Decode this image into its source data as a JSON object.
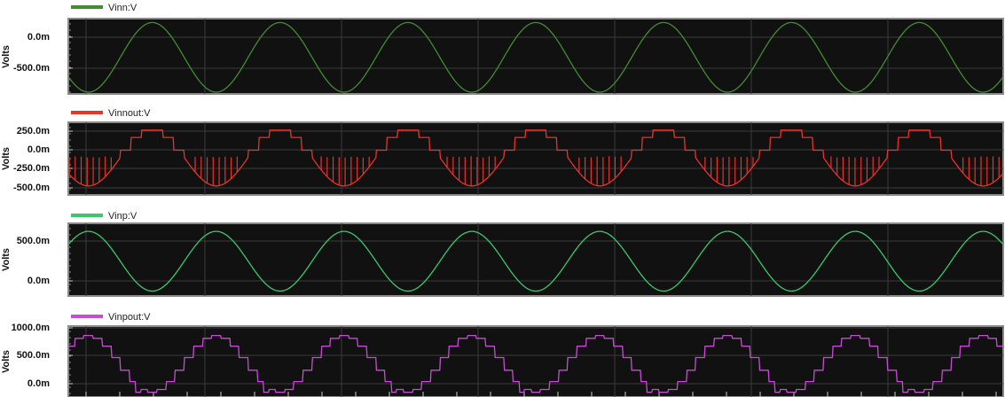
{
  "app": {
    "units_label": "Volts"
  },
  "chart_data": [
    {
      "type": "line",
      "series": [
        {
          "name": "Vinn:V",
          "color": "#3f8f2e"
        }
      ],
      "yticks": [
        "0.0m",
        "-500.0m"
      ],
      "ylim": [
        -800,
        200
      ],
      "waveform": {
        "shape": "sine",
        "cycles": 7.3,
        "min": -800,
        "max": 170,
        "phase": 0.6
      }
    },
    {
      "type": "line",
      "series": [
        {
          "name": "Vinnout:V",
          "color": "#e8322a"
        }
      ],
      "yticks": [
        "250.0m",
        "0.0m",
        "-250.0m",
        "-500.0m"
      ],
      "ylim": [
        -600,
        350
      ],
      "waveform": {
        "shape": "stepped-sine-with-glitches",
        "cycles": 7.3,
        "min": -500,
        "max": 280,
        "phase": 0.6
      }
    },
    {
      "type": "line",
      "series": [
        {
          "name": "Vinp:V",
          "color": "#39c96a"
        }
      ],
      "yticks": [
        "500.0m",
        "0.0m"
      ],
      "ylim": [
        -200,
        900
      ],
      "waveform": {
        "shape": "sine",
        "cycles": 7.3,
        "min": -150,
        "max": 800,
        "phase": 0.1
      }
    },
    {
      "type": "line",
      "series": [
        {
          "name": "Vinpout:V",
          "color": "#c84bd6"
        }
      ],
      "yticks": [
        "1000.0m",
        "500.0m",
        "0.0m"
      ],
      "ylim": [
        -100,
        1050
      ],
      "waveform": {
        "shape": "staircase",
        "cycles": 7.3,
        "min": -50,
        "max": 920,
        "phase": 0.1
      }
    }
  ]
}
